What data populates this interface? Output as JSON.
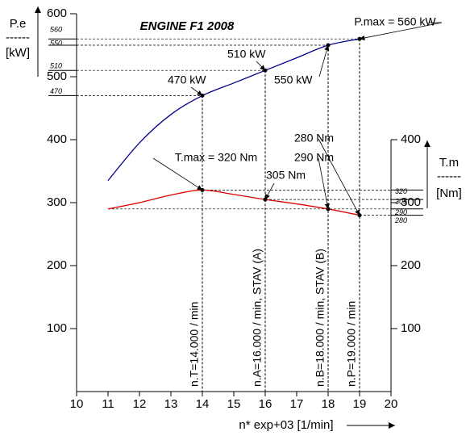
{
  "chart_data": {
    "type": "line",
    "title": "ENGINE F1 2008",
    "xlabel": "n* exp+03 [1/min]",
    "ylabel": {
      "name": "P.e",
      "rule": "------",
      "unit": "[kW]"
    },
    "y2label": {
      "name": "T.m",
      "rule": "------",
      "unit": "[Nm]"
    },
    "x": [
      11,
      12,
      13,
      14,
      15,
      16,
      17,
      18,
      19
    ],
    "series": [
      {
        "color": "#00008b",
        "axis": "y",
        "values": [
          335,
          395,
          440,
          470,
          490,
          510,
          530,
          550,
          560
        ]
      },
      {
        "color": "#dd0000",
        "axis": "y2",
        "values": [
          290,
          300,
          312,
          320,
          313,
          305,
          298,
          290,
          280
        ]
      }
    ],
    "xlim": [
      10,
      20
    ],
    "xticks": [
      10,
      11,
      12,
      13,
      14,
      15,
      16,
      17,
      18,
      19,
      20
    ],
    "ylim": [
      0,
      600
    ],
    "yticks": [
      100,
      200,
      300,
      400,
      500,
      600
    ],
    "yticks_minor": [
      470,
      510,
      550,
      560
    ],
    "y2lim": [
      0,
      400
    ],
    "y2ticks": [
      100,
      200,
      300,
      400
    ],
    "y2ticks_minor": [
      280,
      290,
      305,
      320
    ],
    "vlines": [
      {
        "x": 14,
        "label": "n.T=14.000 / min"
      },
      {
        "x": 16,
        "label": "n.A=16.000 / min, STAV (A)"
      },
      {
        "x": 18,
        "label": "n.B=18.000 / min, STAV (B)"
      },
      {
        "x": 19,
        "label": "n.P=19.000 / min"
      }
    ],
    "annotations": [
      "470 kW",
      "510 kW",
      "550 kW",
      "P.max = 560 kW",
      "T.max = 320 Nm",
      "305 Nm",
      "290 Nm",
      "280 Nm"
    ]
  }
}
